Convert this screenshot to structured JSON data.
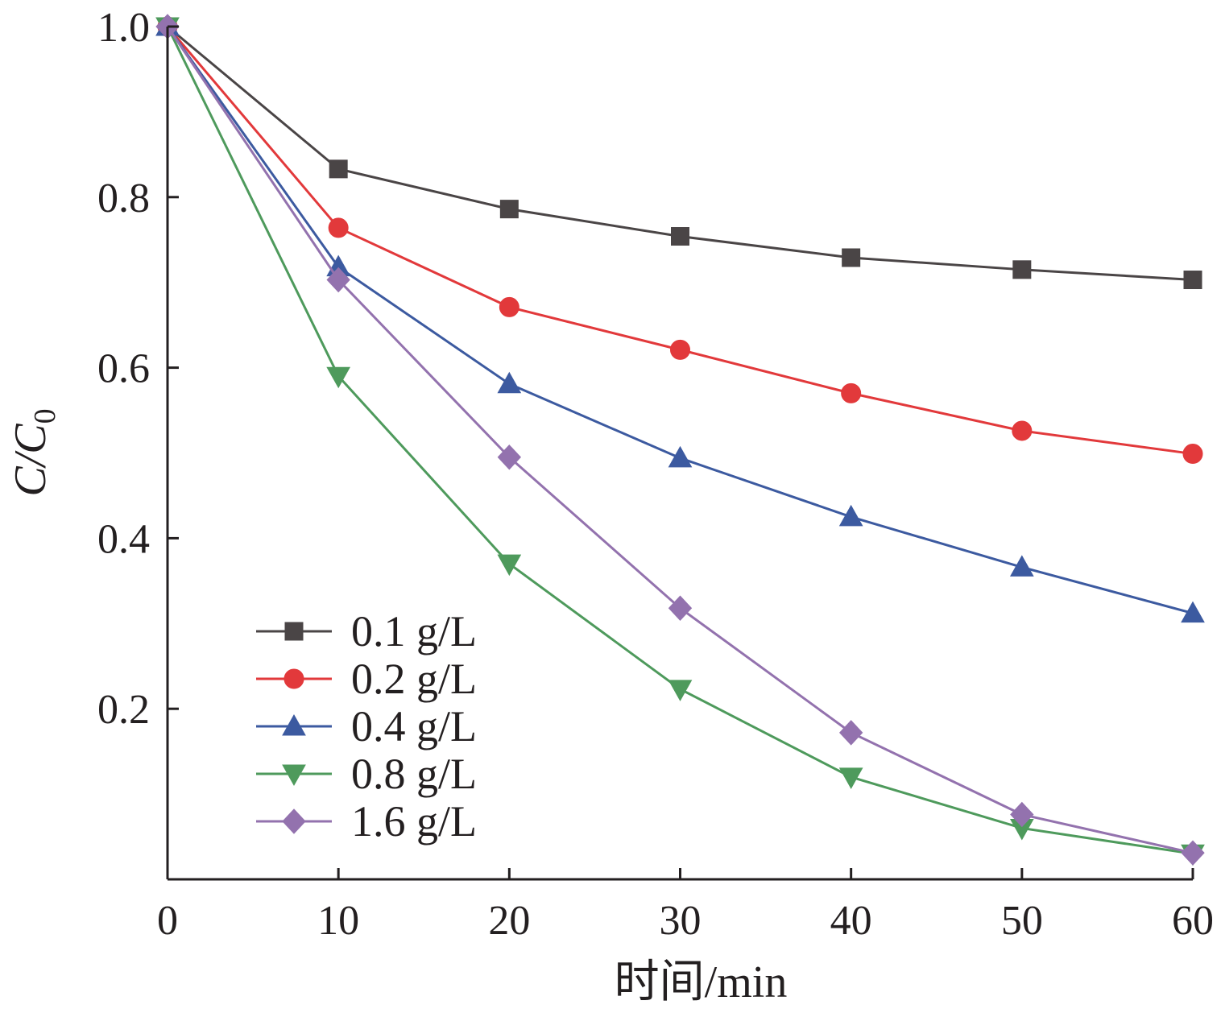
{
  "chart_data": {
    "type": "line",
    "title": "",
    "xlabel": "时间/min",
    "ylabel": {
      "main": "C/C",
      "subscript": "0"
    },
    "xlim": [
      0,
      60
    ],
    "ylim": [
      0,
      1.0
    ],
    "xticks": [
      0,
      10,
      20,
      30,
      40,
      50,
      60
    ],
    "xtick_labels": [
      "0",
      "10",
      "20",
      "30",
      "40",
      "50",
      "60"
    ],
    "yticks": [
      0.2,
      0.4,
      0.6,
      0.8,
      1.0
    ],
    "ytick_labels": [
      "0.2",
      "0.4",
      "0.6",
      "0.8",
      "1.0"
    ],
    "grid": false,
    "legend_position": "bottom-left",
    "x": [
      0,
      10,
      20,
      30,
      40,
      50,
      60
    ],
    "series": [
      {
        "name": "0.1 g/L",
        "color": "#4a4546",
        "marker": "square",
        "values": [
          1.0,
          0.833,
          0.786,
          0.754,
          0.729,
          0.715,
          0.703
        ]
      },
      {
        "name": "0.2 g/L",
        "color": "#e2393b",
        "marker": "circle",
        "values": [
          1.0,
          0.764,
          0.671,
          0.621,
          0.57,
          0.526,
          0.499
        ]
      },
      {
        "name": "0.4 g/L",
        "color": "#3c5aa0",
        "marker": "triangle-up",
        "values": [
          1.0,
          0.718,
          0.581,
          0.494,
          0.425,
          0.366,
          0.312
        ]
      },
      {
        "name": "0.8 g/L",
        "color": "#4e9a5c",
        "marker": "triangle-down",
        "values": [
          1.0,
          0.59,
          0.37,
          0.223,
          0.12,
          0.06,
          0.03
        ]
      },
      {
        "name": "1.6 g/L",
        "color": "#9372ae",
        "marker": "diamond",
        "values": [
          1.0,
          0.703,
          0.495,
          0.318,
          0.172,
          0.076,
          0.031
        ]
      }
    ]
  }
}
